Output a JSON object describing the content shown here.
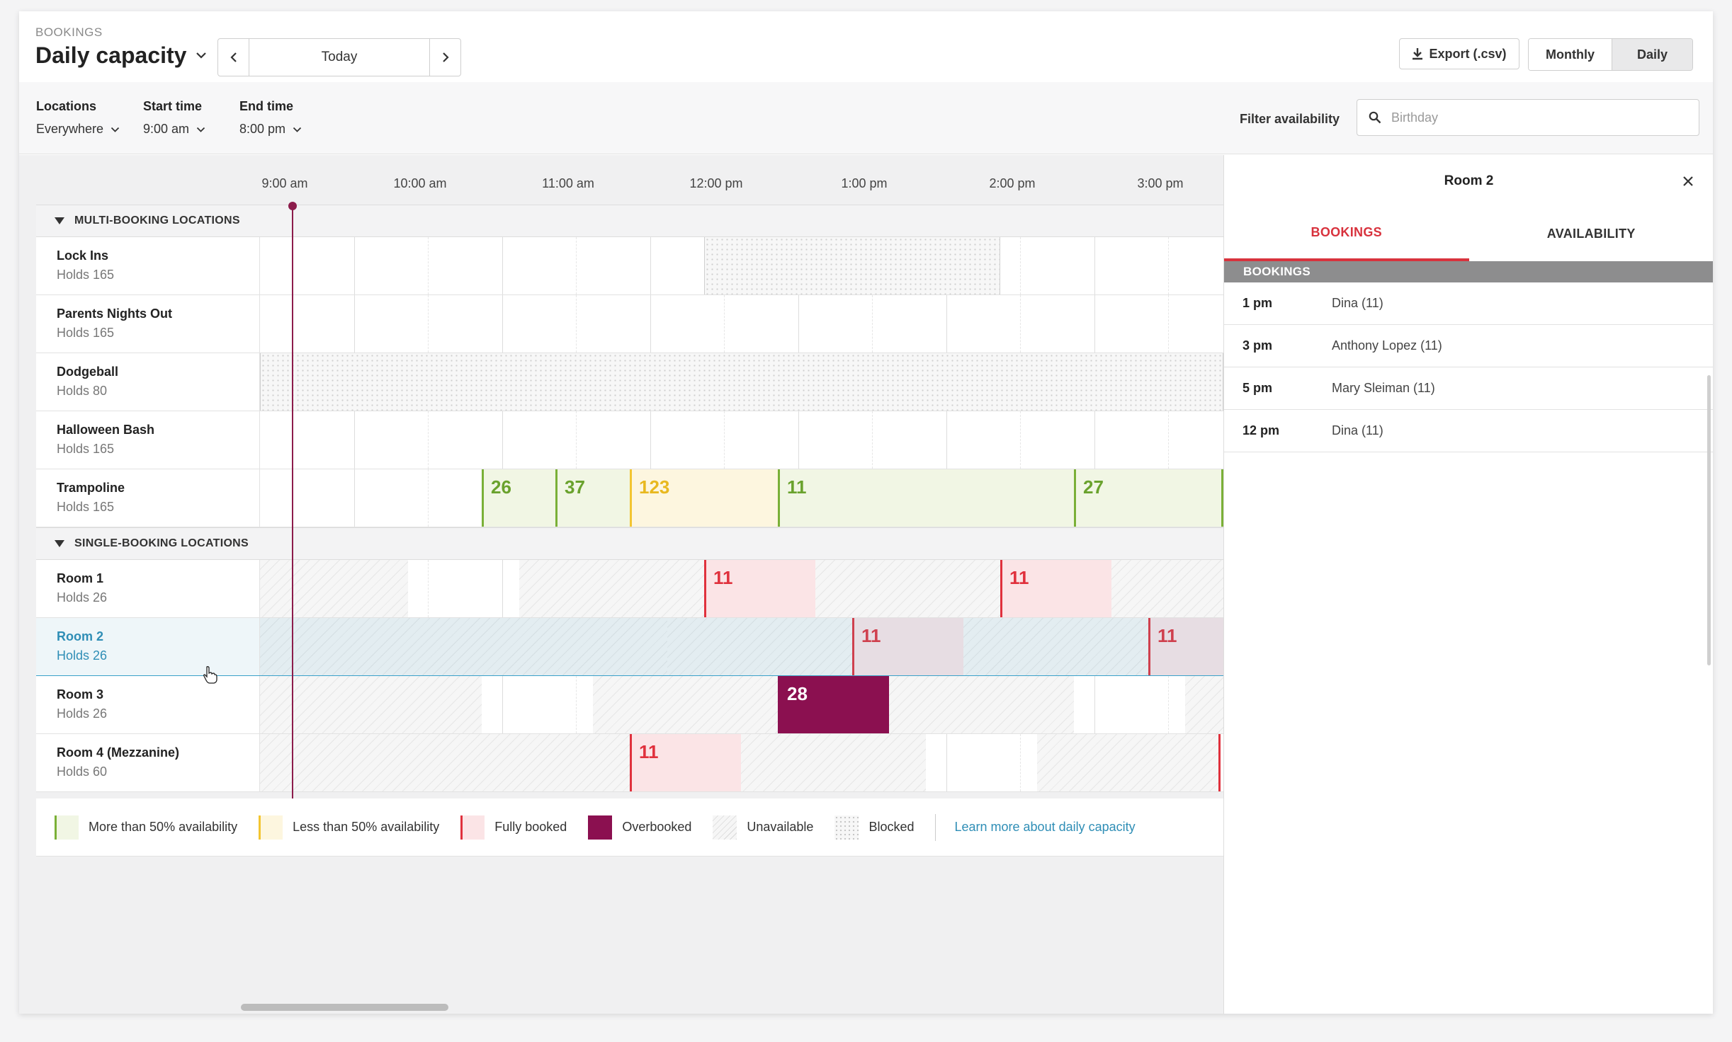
{
  "header": {
    "breadcrumb": "BOOKINGS",
    "title": "Daily capacity",
    "date_label": "Today",
    "export_label": "Export (.csv)",
    "view_toggle": {
      "monthly": "Monthly",
      "daily": "Daily",
      "selected": "Daily"
    }
  },
  "filters": {
    "locations": {
      "label": "Locations",
      "value": "Everywhere"
    },
    "start_time": {
      "label": "Start time",
      "value": "9:00 am"
    },
    "end_time": {
      "label": "End time",
      "value": "8:00 pm"
    },
    "availability": {
      "label": "Filter availability",
      "placeholder": "Birthday"
    }
  },
  "timeline": {
    "hours": [
      "9:00 am",
      "10:00 am",
      "11:00 am",
      "12:00 pm",
      "1:00 pm",
      "2:00 pm",
      "3:00 pm"
    ]
  },
  "sections": {
    "multi": "MULTI-BOOKING LOCATIONS",
    "single": "SINGLE-BOOKING LOCATIONS"
  },
  "locations": [
    {
      "name": "Lock Ins",
      "holds": "Holds 165"
    },
    {
      "name": "Parents Nights Out",
      "holds": "Holds 165"
    },
    {
      "name": "Dodgeball",
      "holds": "Holds 80"
    },
    {
      "name": "Halloween Bash",
      "holds": "Holds 165"
    },
    {
      "name": "Trampoline",
      "holds": "Holds 165"
    },
    {
      "name": "Room 1",
      "holds": "Holds 26"
    },
    {
      "name": "Room 2",
      "holds": "Holds 26"
    },
    {
      "name": "Room 3",
      "holds": "Holds 26"
    },
    {
      "name": "Room 4 (Mezzanine)",
      "holds": "Holds 60"
    }
  ],
  "capacity_values": {
    "trampoline": [
      "26",
      "37",
      "123",
      "11",
      "27"
    ],
    "room1": [
      "11",
      "11"
    ],
    "room2": [
      "11",
      "11"
    ],
    "room3": [
      "28"
    ],
    "room4": [
      "11"
    ]
  },
  "legend": {
    "more_than_half": "More than 50% availability",
    "less_than_half": "Less than 50% availability",
    "fully_booked": "Fully booked",
    "overbooked": "Overbooked",
    "unavailable": "Unavailable",
    "blocked": "Blocked",
    "learn_more": "Learn more about daily capacity"
  },
  "panel": {
    "title": "Room 2",
    "tabs": [
      "BOOKINGS",
      "AVAILABILITY"
    ],
    "active_tab": "BOOKINGS",
    "list_header": "BOOKINGS",
    "bookings": [
      {
        "time": "1 pm",
        "name": "Dina (11)"
      },
      {
        "time": "3 pm",
        "name": "Anthony Lopez (11)"
      },
      {
        "time": "5 pm",
        "name": "Mary Sleiman (11)"
      },
      {
        "time": "12 pm",
        "name": "Dina (11)"
      }
    ]
  },
  "colors": {
    "accent": "#d8323d",
    "selection": "#3aa1c9",
    "more_than_half": "#7ab037",
    "less_than_half": "#f3c531",
    "fully_booked": "#e0313d",
    "overbooked": "#8b1050",
    "now_line": "#8c1c4b"
  },
  "icons": [
    "chevron-down-icon",
    "chevron-left-icon",
    "chevron-right-icon",
    "download-icon",
    "search-icon",
    "close-icon",
    "triangle-down-icon",
    "pointer-cursor-icon"
  ]
}
